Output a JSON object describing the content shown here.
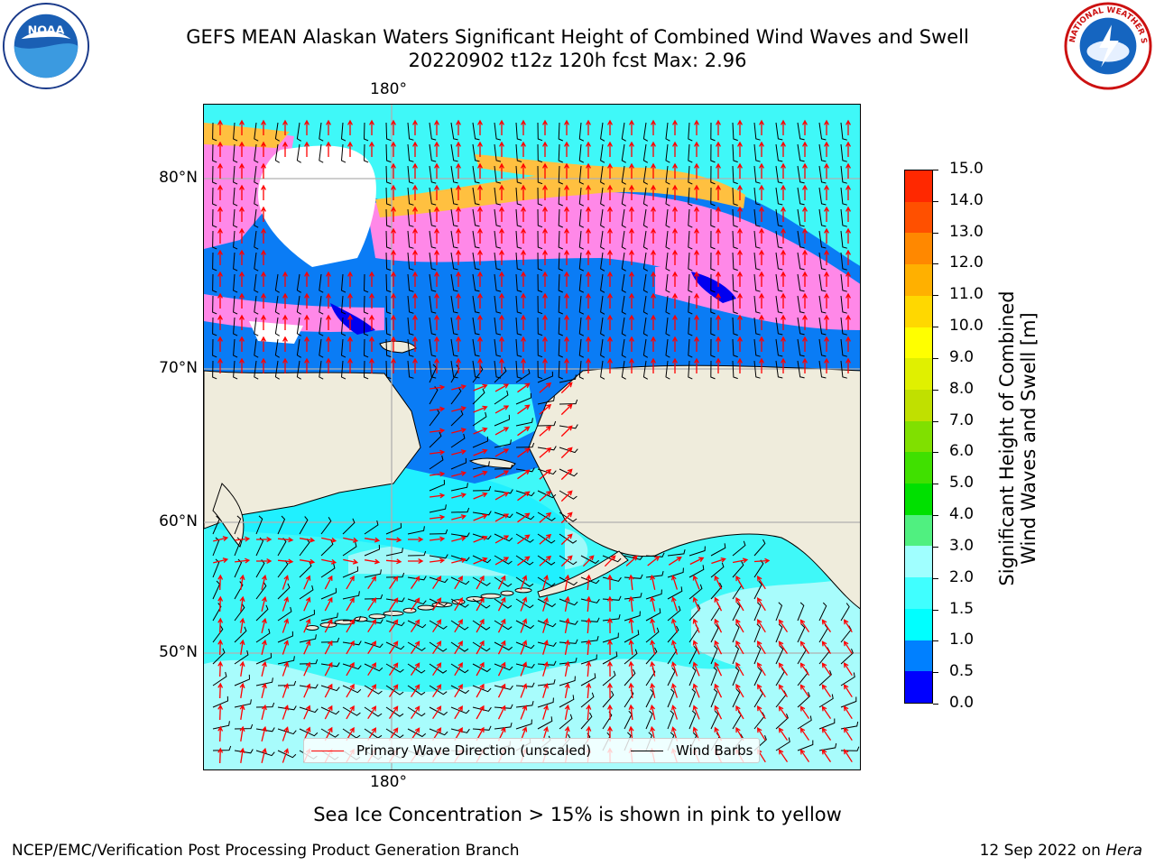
{
  "title": {
    "line1": "GEFS MEAN Alaskan Waters Significant Height of Combined Wind Waves and Swell",
    "line2": "20220902 t12z 120h fcst   Max: 2.96"
  },
  "logos": {
    "left": {
      "icon": "noaa-logo",
      "text": "NOAA"
    },
    "right": {
      "icon": "national-weather-service-logo",
      "text": "NATIONAL WEATHER SERVICE"
    }
  },
  "map": {
    "longitude_labels": {
      "top": "180°",
      "bottom": "180°"
    },
    "latitude_labels": [
      "80°N",
      "70°N",
      "60°N",
      "50°N"
    ],
    "colors": {
      "land": "#efecdc",
      "sea_ice": "#ff88e8",
      "wave_direction": "#ff0000",
      "wind_barbs": "#000000",
      "gridlines": "#b0b0b0"
    },
    "legend": {
      "items": [
        {
          "label": "Primary Wave Direction (unscaled)",
          "color": "#ff0000"
        },
        {
          "label": "Wind Barbs",
          "color": "#000000"
        }
      ]
    }
  },
  "colorbar": {
    "title_line1": "Significant Height of Combined",
    "title_line2": "Wind Waves and Swell [m]",
    "ticks": [
      "0.0",
      "0.5",
      "1.0",
      "1.5",
      "2.0",
      "3.0",
      "4.0",
      "5.0",
      "6.0",
      "7.0",
      "8.0",
      "9.0",
      "10.0",
      "11.0",
      "12.0",
      "13.0",
      "14.0",
      "15.0"
    ],
    "colors": [
      "#0000ff",
      "#0080ff",
      "#00ffff",
      "#40ffff",
      "#a0ffff",
      "#50f080",
      "#00e000",
      "#40e000",
      "#80e000",
      "#c0e000",
      "#e0f000",
      "#ffff00",
      "#ffd800",
      "#ffb000",
      "#ff8800",
      "#ff5000",
      "#ff2800",
      "#ff0000"
    ]
  },
  "caption": "Sea Ice Concentration > 15% is shown in pink to yellow",
  "footer": {
    "left": "NCEP/EMC/Verification Post Processing Product Generation Branch",
    "right_prefix": "12 Sep 2022 on ",
    "right_italic": "Hera"
  }
}
